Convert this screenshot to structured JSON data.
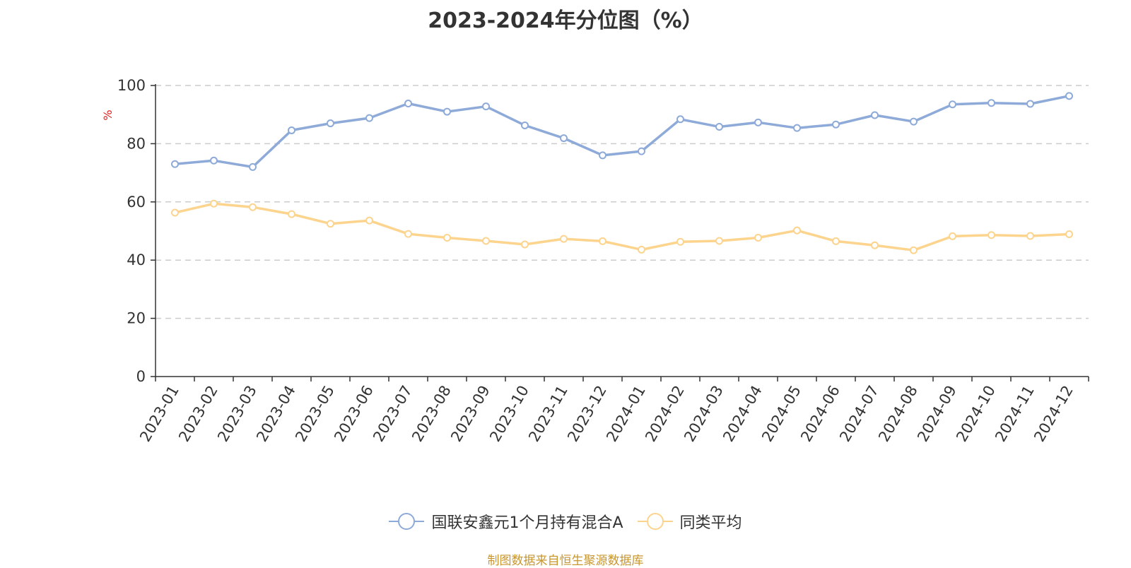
{
  "chart_data": {
    "type": "line",
    "title": "2023-2024年分位图（%）",
    "ylabel": "%",
    "xlabel": "",
    "ylim": [
      0,
      100
    ],
    "yticks": [
      0,
      20,
      40,
      60,
      80,
      100
    ],
    "grid": true,
    "legend_position": "bottom",
    "categories": [
      "2023-01",
      "2023-02",
      "2023-03",
      "2023-04",
      "2023-05",
      "2023-06",
      "2023-07",
      "2023-08",
      "2023-09",
      "2023-10",
      "2023-11",
      "2023-12",
      "2024-01",
      "2024-02",
      "2024-03",
      "2024-04",
      "2024-05",
      "2024-06",
      "2024-07",
      "2024-08",
      "2024-09",
      "2024-10",
      "2024-11",
      "2024-12"
    ],
    "series": [
      {
        "name": "国联安鑫元1个月持有混合A",
        "color": "#8eaad8",
        "values": [
          73.0,
          74.2,
          72.0,
          84.6,
          87.0,
          88.8,
          93.8,
          91.0,
          92.8,
          86.3,
          81.9,
          76.0,
          77.4,
          88.4,
          85.8,
          87.3,
          85.4,
          86.6,
          89.8,
          87.6,
          93.5,
          94.0,
          93.7,
          96.4
        ]
      },
      {
        "name": "同类平均",
        "color": "#fcd48e",
        "values": [
          56.3,
          59.4,
          58.2,
          55.8,
          52.5,
          53.6,
          49.0,
          47.7,
          46.6,
          45.4,
          47.3,
          46.5,
          43.6,
          46.3,
          46.6,
          47.7,
          50.2,
          46.5,
          45.1,
          43.4,
          48.2,
          48.6,
          48.3,
          48.9
        ]
      }
    ]
  },
  "source_text": "制图数据来自恒生聚源数据库"
}
